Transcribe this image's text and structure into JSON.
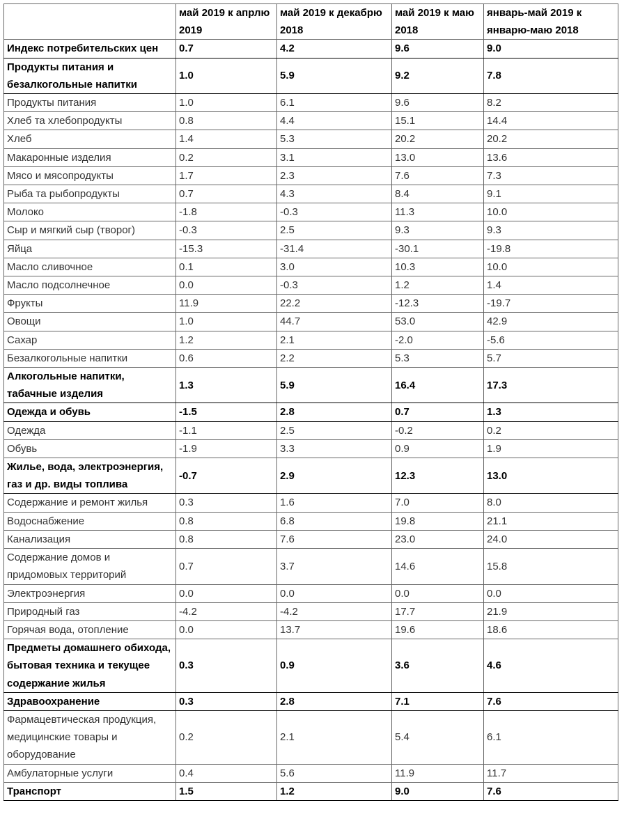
{
  "table": {
    "headers": [
      "",
      "май 2019 к апрлю 2019",
      "май 2019 к декабрю 2018",
      "май 2019 к маю 2018",
      "январь-май 2019 к январю-маю 2018"
    ],
    "rows": [
      {
        "bold": true,
        "cells": [
          "Индекс потребительских цен",
          "0.7",
          "4.2",
          "9.6",
          "9.0"
        ]
      },
      {
        "bold": true,
        "cells": [
          "Продукты питания и безалкогольные напитки",
          "1.0",
          "5.9",
          "9.2",
          "7.8"
        ]
      },
      {
        "bold": false,
        "cells": [
          "Продукты питания",
          "1.0",
          "6.1",
          "9.6",
          "8.2"
        ]
      },
      {
        "bold": false,
        "cells": [
          "Хлеб та хлебопродукты",
          "0.8",
          "4.4",
          "15.1",
          "14.4"
        ]
      },
      {
        "bold": false,
        "cells": [
          "Хлеб",
          "1.4",
          "5.3",
          "20.2",
          "20.2"
        ]
      },
      {
        "bold": false,
        "cells": [
          "Макаронные изделия",
          "0.2",
          "3.1",
          "13.0",
          "13.6"
        ]
      },
      {
        "bold": false,
        "cells": [
          "Мясо и мясопродукты",
          "1.7",
          "2.3",
          "7.6",
          "7.3"
        ]
      },
      {
        "bold": false,
        "cells": [
          "Рыба та рыбопродукты",
          "0.7",
          "4.3",
          "8.4",
          "9.1"
        ]
      },
      {
        "bold": false,
        "cells": [
          "Молоко",
          "-1.8",
          "-0.3",
          "11.3",
          "10.0"
        ]
      },
      {
        "bold": false,
        "cells": [
          "Сыр и мягкий сыр (творог)",
          "-0.3",
          "2.5",
          "9.3",
          "9.3"
        ]
      },
      {
        "bold": false,
        "cells": [
          "Яйца",
          "-15.3",
          "-31.4",
          "-30.1",
          "-19.8"
        ]
      },
      {
        "bold": false,
        "cells": [
          "Масло сливочное",
          "0.1",
          "3.0",
          "10.3",
          "10.0"
        ]
      },
      {
        "bold": false,
        "cells": [
          "Масло подсолнечное",
          "0.0",
          "-0.3",
          "1.2",
          "1.4"
        ]
      },
      {
        "bold": false,
        "cells": [
          "Фрукты",
          "11.9",
          "22.2",
          "-12.3",
          "-19.7"
        ]
      },
      {
        "bold": false,
        "cells": [
          "Овощи",
          "1.0",
          "44.7",
          "53.0",
          "42.9"
        ]
      },
      {
        "bold": false,
        "cells": [
          "Сахар",
          "1.2",
          "2.1",
          "-2.0",
          "-5.6"
        ]
      },
      {
        "bold": false,
        "cells": [
          "Безалкогольные напитки",
          "0.6",
          "2.2",
          "5.3",
          "5.7"
        ]
      },
      {
        "bold": true,
        "cells": [
          "Алкогольные напитки, табачные изделия",
          "1.3",
          "5.9",
          "16.4",
          "17.3"
        ]
      },
      {
        "bold": true,
        "cells": [
          "Одежда и обувь",
          "-1.5",
          "2.8",
          "0.7",
          "1.3"
        ]
      },
      {
        "bold": false,
        "cells": [
          "Одежда",
          "-1.1",
          "2.5",
          "-0.2",
          "0.2"
        ]
      },
      {
        "bold": false,
        "cells": [
          "Обувь",
          "-1.9",
          "3.3",
          "0.9",
          "1.9"
        ]
      },
      {
        "bold": true,
        "cells": [
          "Жилье, вода, электроэнергия, газ и др. виды топлива",
          "-0.7",
          "2.9",
          "12.3",
          "13.0"
        ]
      },
      {
        "bold": false,
        "cells": [
          "Содержание и ремонт жилья",
          "0.3",
          "1.6",
          "7.0",
          "8.0"
        ]
      },
      {
        "bold": false,
        "cells": [
          "Водоснабжение",
          "0.8",
          "6.8",
          "19.8",
          "21.1"
        ]
      },
      {
        "bold": false,
        "cells": [
          "Канализация",
          "0.8",
          "7.6",
          "23.0",
          "24.0"
        ]
      },
      {
        "bold": false,
        "cells": [
          "Содержание домов и придомовых территорий",
          "0.7",
          "3.7",
          "14.6",
          "15.8"
        ]
      },
      {
        "bold": false,
        "cells": [
          "Электроэнергия",
          "0.0",
          "0.0",
          "0.0",
          "0.0"
        ]
      },
      {
        "bold": false,
        "cells": [
          "Природный газ",
          "-4.2",
          "-4.2",
          "17.7",
          "21.9"
        ]
      },
      {
        "bold": false,
        "cells": [
          "Горячая вода, отопление",
          "0.0",
          "13.7",
          "19.6",
          "18.6"
        ]
      },
      {
        "bold": true,
        "cells": [
          "Предметы домашнего обихода, бытовая техника и текущее содержание жилья",
          "0.3",
          "0.9",
          "3.6",
          "4.6"
        ]
      },
      {
        "bold": true,
        "cells": [
          "Здравоохранение",
          "0.3",
          "2.8",
          "7.1",
          "7.6"
        ]
      },
      {
        "bold": false,
        "cells": [
          "Фармацевтическая продукция, медицинские товары и оборудование",
          "0.2",
          "2.1",
          "5.4",
          "6.1"
        ]
      },
      {
        "bold": false,
        "cells": [
          "Амбулаторные услуги",
          "0.4",
          "5.6",
          "11.9",
          "11.7"
        ]
      },
      {
        "bold": true,
        "cells": [
          "Транспорт",
          "1.5",
          "1.2",
          "9.0",
          "7.6"
        ]
      }
    ]
  }
}
